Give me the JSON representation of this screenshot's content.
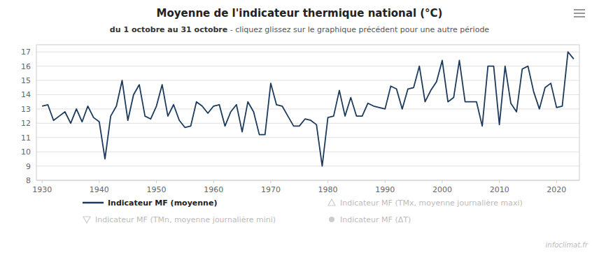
{
  "chart_data": {
    "type": "line",
    "title": "Moyenne de l'indicateur thermique national (°C)",
    "subtitle": [
      "du 1 octobre au 31 octobre",
      " - cliquez glissez sur le graphique précédent pour une autre période"
    ],
    "x": [
      1930,
      1931,
      1932,
      1933,
      1934,
      1935,
      1936,
      1937,
      1938,
      1939,
      1940,
      1941,
      1942,
      1943,
      1944,
      1945,
      1946,
      1947,
      1948,
      1949,
      1950,
      1951,
      1952,
      1953,
      1954,
      1955,
      1956,
      1957,
      1958,
      1959,
      1960,
      1961,
      1962,
      1963,
      1964,
      1965,
      1966,
      1967,
      1968,
      1969,
      1970,
      1971,
      1972,
      1973,
      1974,
      1975,
      1976,
      1977,
      1978,
      1979,
      1980,
      1981,
      1982,
      1983,
      1984,
      1985,
      1986,
      1987,
      1988,
      1989,
      1990,
      1991,
      1992,
      1993,
      1994,
      1995,
      1996,
      1997,
      1998,
      1999,
      2000,
      2001,
      2002,
      2003,
      2004,
      2005,
      2006,
      2007,
      2008,
      2009,
      2010,
      2011,
      2012,
      2013,
      2014,
      2015,
      2016,
      2017,
      2018,
      2019,
      2020,
      2021,
      2022,
      2023
    ],
    "series": [
      {
        "name": "Indicateur MF (moyenne)",
        "color": "#1b3a5c",
        "values": [
          13.2,
          13.3,
          12.2,
          12.5,
          12.8,
          12.0,
          13.0,
          12.1,
          13.2,
          12.4,
          12.1,
          9.5,
          12.5,
          13.2,
          15.0,
          12.2,
          14.0,
          14.7,
          12.5,
          12.3,
          13.2,
          14.7,
          12.5,
          13.3,
          12.2,
          11.7,
          11.8,
          13.5,
          13.2,
          12.7,
          13.2,
          13.3,
          11.8,
          12.8,
          13.3,
          11.4,
          13.5,
          12.8,
          11.2,
          11.2,
          14.8,
          13.3,
          13.2,
          12.5,
          11.8,
          11.8,
          12.3,
          12.2,
          11.9,
          9.0,
          12.4,
          12.5,
          14.3,
          12.5,
          13.8,
          12.5,
          12.5,
          13.4,
          13.2,
          13.1,
          13.0,
          14.6,
          14.4,
          13.0,
          14.4,
          14.5,
          16.0,
          13.5,
          14.3,
          14.9,
          16.4,
          13.5,
          13.8,
          16.4,
          13.5,
          13.5,
          13.5,
          11.8,
          16.0,
          16.0,
          11.9,
          16.0,
          13.4,
          12.8,
          15.8,
          16.0,
          14.2,
          13.0,
          14.5,
          14.8,
          13.1,
          13.2,
          17.0,
          16.5
        ]
      }
    ],
    "annotations": [
      {
        "text": "Indicateur MF (TMn, moyenne journalière mini)",
        "marker": "triangle-down"
      },
      {
        "text": "Indicateur MF (TMx, moyenne journalière maxi)",
        "marker": "triangle-up"
      },
      {
        "text": "Indicateur MF (ΔT)",
        "marker": "circle"
      },
      {
        "text": "infoclimat.fr"
      }
    ],
    "xlim": [
      1929,
      2024
    ],
    "xticks": [
      1930,
      1940,
      1950,
      1960,
      1970,
      1980,
      1990,
      2000,
      2010,
      2020
    ],
    "ylim": [
      8,
      17.5
    ],
    "yticks": [
      8,
      9,
      10,
      11,
      12,
      13,
      14,
      15,
      16,
      17
    ],
    "grid": true,
    "legend": "bottom"
  }
}
